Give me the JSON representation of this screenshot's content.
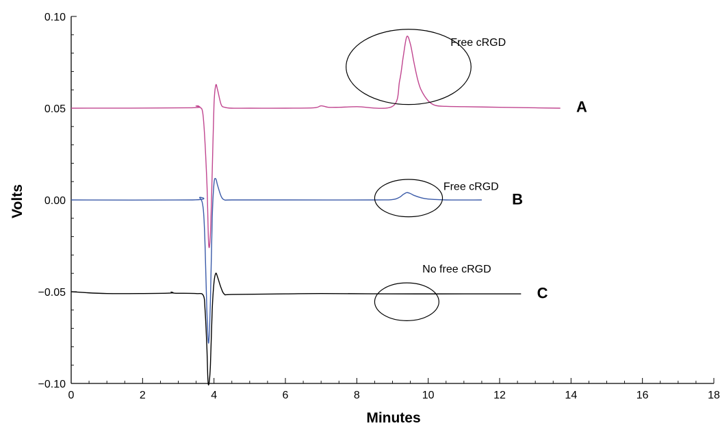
{
  "chart_data": {
    "type": "line",
    "xlabel": "Minutes",
    "ylabel": "Volts",
    "xlim": [
      0,
      18
    ],
    "ylim": [
      -0.1,
      0.1
    ],
    "xticks": [
      0,
      2,
      4,
      6,
      8,
      10,
      12,
      14,
      16,
      18
    ],
    "yticks": [
      -0.1,
      -0.05,
      0.0,
      0.05,
      0.1
    ],
    "xtick_labels": [
      "0",
      "2",
      "4",
      "6",
      "8",
      "10",
      "12",
      "14",
      "16",
      "18"
    ],
    "ytick_labels": [
      "−0.10",
      "−0.05",
      "0.00",
      "0.05",
      "0.10"
    ],
    "grid": false,
    "series": [
      {
        "name": "A",
        "color": "#c0458f",
        "x": [
          0,
          3.3,
          3.5,
          3.6,
          3.7,
          3.8,
          3.85,
          3.9,
          3.95,
          4.0,
          4.05,
          4.1,
          4.2,
          4.3,
          4.5,
          5.0,
          6.0,
          6.8,
          7.0,
          7.2,
          7.5,
          8.0,
          9.0,
          9.2,
          9.3,
          9.4,
          9.5,
          9.6,
          9.7,
          9.8,
          10.0,
          10.2,
          10.5,
          11.0,
          12.0,
          13.0,
          13.7
        ],
        "y": [
          0.05,
          0.0502,
          0.0512,
          0.0505,
          0.045,
          0.01,
          -0.024,
          -0.018,
          0.015,
          0.052,
          0.0625,
          0.06,
          0.052,
          0.0505,
          0.05,
          0.05,
          0.05,
          0.0502,
          0.0513,
          0.0505,
          0.0505,
          0.0508,
          0.051,
          0.065,
          0.078,
          0.089,
          0.085,
          0.075,
          0.066,
          0.06,
          0.054,
          0.0515,
          0.051,
          0.0508,
          0.0505,
          0.0502,
          0.05
        ]
      },
      {
        "name": "B",
        "color": "#3a5aa8",
        "x": [
          0,
          3.4,
          3.6,
          3.7,
          3.75,
          3.8,
          3.85,
          3.9,
          3.95,
          4.0,
          4.05,
          4.1,
          4.2,
          4.3,
          4.5,
          6.0,
          8.5,
          9.0,
          9.2,
          9.3,
          9.4,
          9.5,
          9.6,
          9.8,
          10.0,
          10.5,
          11.5
        ],
        "y": [
          0.0,
          0.0,
          0.0012,
          -0.005,
          -0.025,
          -0.06,
          -0.078,
          -0.055,
          -0.01,
          0.009,
          0.0115,
          0.008,
          0.002,
          0.0,
          0.0,
          0.0,
          0.0,
          0.0002,
          0.0015,
          0.003,
          0.004,
          0.0035,
          0.0025,
          0.0012,
          0.0005,
          0.0,
          0.0
        ]
      },
      {
        "name": "C",
        "color": "#000000",
        "x": [
          0,
          1.0,
          2.7,
          2.8,
          2.9,
          3.5,
          3.7,
          3.75,
          3.8,
          3.83,
          3.86,
          3.9,
          3.95,
          4.0,
          4.05,
          4.1,
          4.2,
          4.3,
          4.5,
          6.0,
          7.0,
          9.0,
          11.0,
          12.6
        ],
        "y": [
          -0.05,
          -0.051,
          -0.0508,
          -0.0502,
          -0.0508,
          -0.051,
          -0.052,
          -0.06,
          -0.08,
          -0.098,
          -0.1,
          -0.09,
          -0.06,
          -0.045,
          -0.04,
          -0.042,
          -0.048,
          -0.0515,
          -0.0515,
          -0.0512,
          -0.051,
          -0.0512,
          -0.0512,
          -0.0512
        ]
      }
    ],
    "annotations": [
      {
        "text": "Free cRGD",
        "x": 11.4,
        "y": 0.084
      },
      {
        "text": "Free cRGD",
        "x": 11.2,
        "y": 0.0055
      },
      {
        "text": "No free cRGD",
        "x": 10.8,
        "y": -0.0395
      }
    ],
    "trace_labels": [
      {
        "text": "A",
        "x": 14.3,
        "y": 0.048
      },
      {
        "text": "B",
        "x": 12.5,
        "y": -0.0025
      },
      {
        "text": "C",
        "x": 13.2,
        "y": -0.0535
      }
    ],
    "ellipses": [
      {
        "cx": 9.45,
        "cy": 0.0725,
        "rx": 1.75,
        "ry": 0.0205
      },
      {
        "cx": 9.45,
        "cy": 0.001,
        "rx": 0.95,
        "ry": 0.0102
      },
      {
        "cx": 9.4,
        "cy": -0.0555,
        "rx": 0.9,
        "ry": 0.0103
      }
    ]
  }
}
